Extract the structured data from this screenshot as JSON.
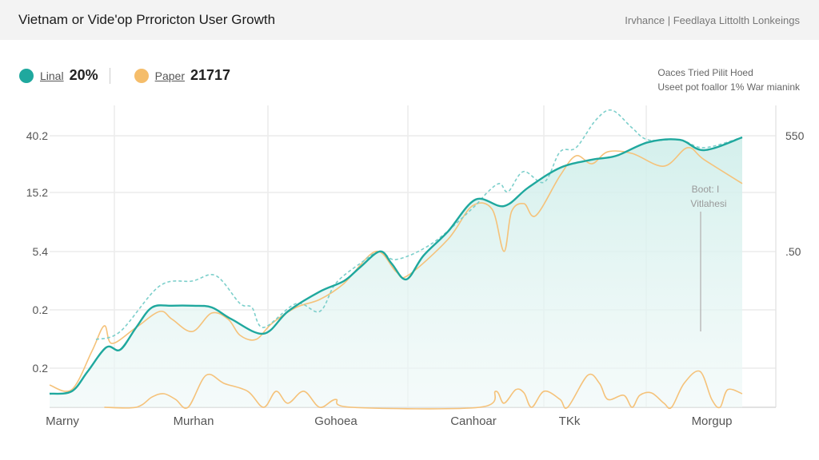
{
  "header": {
    "title": "Vietnam or Vide'op Prroricton User Growth",
    "right_text": "Irvhance | Feedlaya Littolth Lonkeings"
  },
  "legend": [
    {
      "label": "Linal",
      "value": "20%",
      "color": "#1fa89e"
    },
    {
      "label": "Paper",
      "value": "21717",
      "color": "#f5bd6a"
    }
  ],
  "note": {
    "line1": "Oaces Tried Pilit Hoed",
    "line2": "Useet pot foallor 1% War mianink"
  },
  "chart_data": {
    "type": "line",
    "title": "Vietnam or Vide'op Prroricton User Growth",
    "grid": true,
    "legend_placement": "top-left",
    "xlim": [
      0,
      100
    ],
    "ylim": [
      0,
      110
    ],
    "x_tick_labels": [
      "Marny",
      "Murhan",
      "Gohoea",
      "Canhoar",
      "TKk",
      "Morgup"
    ],
    "y_tick_labels_left": [
      "40.2",
      "15.2",
      "5.4",
      "0.2",
      "0.2"
    ],
    "y_tick_labels_right": [
      "550",
      ".50"
    ],
    "annotation": {
      "line1": "Boot: I",
      "line2": "Vitlahesi"
    },
    "series": [
      {
        "style": "solid-area",
        "color": "#1fa89e",
        "x": [
          0,
          3.2,
          5.5,
          8.2,
          10.2,
          12.5,
          14.8,
          17.7,
          20.6,
          23.4,
          26.3,
          30.9,
          34.4,
          39,
          42.5,
          44.8,
          47.7,
          49.4,
          51.5,
          54,
          57.5,
          61.5,
          65.6,
          69.1,
          73.7,
          78.3,
          81.8,
          86.4,
          91,
          94.5,
          100
        ],
        "y": [
          5,
          5.9,
          13.2,
          22.1,
          21.2,
          29.4,
          36.8,
          37.4,
          37.4,
          36.8,
          32.4,
          27.1,
          35.3,
          42.6,
          46.5,
          51.5,
          57.4,
          52.9,
          47.1,
          55.9,
          64.7,
          76.5,
          74.1,
          80.9,
          88.2,
          91.2,
          92.6,
          97.6,
          98.5,
          94.7,
          99.4
        ]
      },
      {
        "style": "dashed",
        "color": "#7ccfcb",
        "x": [
          6.7,
          10.2,
          15.9,
          20.6,
          24,
          27.5,
          29.2,
          30.9,
          35.6,
          39,
          41.3,
          44.8,
          47.7,
          50,
          55.2,
          60.9,
          63.3,
          65,
          66.2,
          68.4,
          71.4,
          73.7,
          76,
          78.9,
          81.2,
          84.1,
          86.4,
          91,
          94.5,
          100
        ],
        "y": [
          25,
          27.9,
          44.7,
          46.5,
          48.5,
          38.2,
          36.8,
          29.4,
          38.2,
          35.3,
          45.6,
          52.9,
          57.4,
          54.4,
          60.3,
          72.9,
          79.4,
          82.4,
          79.4,
          86.8,
          82.9,
          94.1,
          95.6,
          105.9,
          109.4,
          102.9,
          98.5,
          98.5,
          95.6,
          99.4
        ]
      },
      {
        "style": "solid",
        "color": "#f5c27a",
        "x": [
          0,
          3.2,
          6.1,
          7.9,
          9,
          12.5,
          15.9,
          17.7,
          20.6,
          23.4,
          25.8,
          27.5,
          29.8,
          32.1,
          35.6,
          39,
          42.5,
          47.1,
          50,
          51.7,
          57.5,
          61,
          63.9,
          65.6,
          66.7,
          68.5,
          70.2,
          73.7,
          76,
          78.3,
          80.6,
          84.1,
          88.7,
          92.1,
          94.5,
          100
        ],
        "y": [
          8.2,
          6.5,
          20.6,
          30,
          23.5,
          29.4,
          35.3,
          32.4,
          27.9,
          34.7,
          32.4,
          26.5,
          25,
          30.9,
          36.8,
          39.7,
          45.6,
          57.4,
          50,
          48.5,
          61.8,
          74.1,
          72.9,
          57.4,
          72.1,
          75,
          70.6,
          85.3,
          92.6,
          89.7,
          94.1,
          93.5,
          88.8,
          95.6,
          91.2,
          82.4
        ]
      },
      {
        "style": "solid",
        "color": "#f5c27a",
        "x": [
          7.9,
          12.5,
          14.8,
          16.5,
          18.2,
          20,
          22.6,
          25.2,
          28.6,
          30.9,
          32.7,
          34.4,
          36.7,
          39,
          41.3,
          43.6,
          62.1,
          64.4,
          65.6,
          67.3,
          68.5,
          69.6,
          71.4,
          73.7,
          74.8,
          77.7,
          79.4,
          80.6,
          82.9,
          84.1,
          85.2,
          86.9,
          88.7,
          89.8,
          91.6,
          93.9,
          95.6,
          96.8,
          97.9,
          100
        ],
        "y": [
          0,
          0,
          3.8,
          5,
          2.9,
          0,
          11.8,
          8.8,
          5.9,
          0,
          5.9,
          1.5,
          5.9,
          0,
          2.9,
          0,
          0,
          5.9,
          1.5,
          6.5,
          5.3,
          0,
          5.9,
          2.9,
          0,
          11.8,
          8.8,
          2.9,
          4.4,
          0,
          4.4,
          5.3,
          1.5,
          0,
          8.8,
          13.2,
          2.9,
          0,
          6.5,
          5
        ]
      }
    ]
  }
}
